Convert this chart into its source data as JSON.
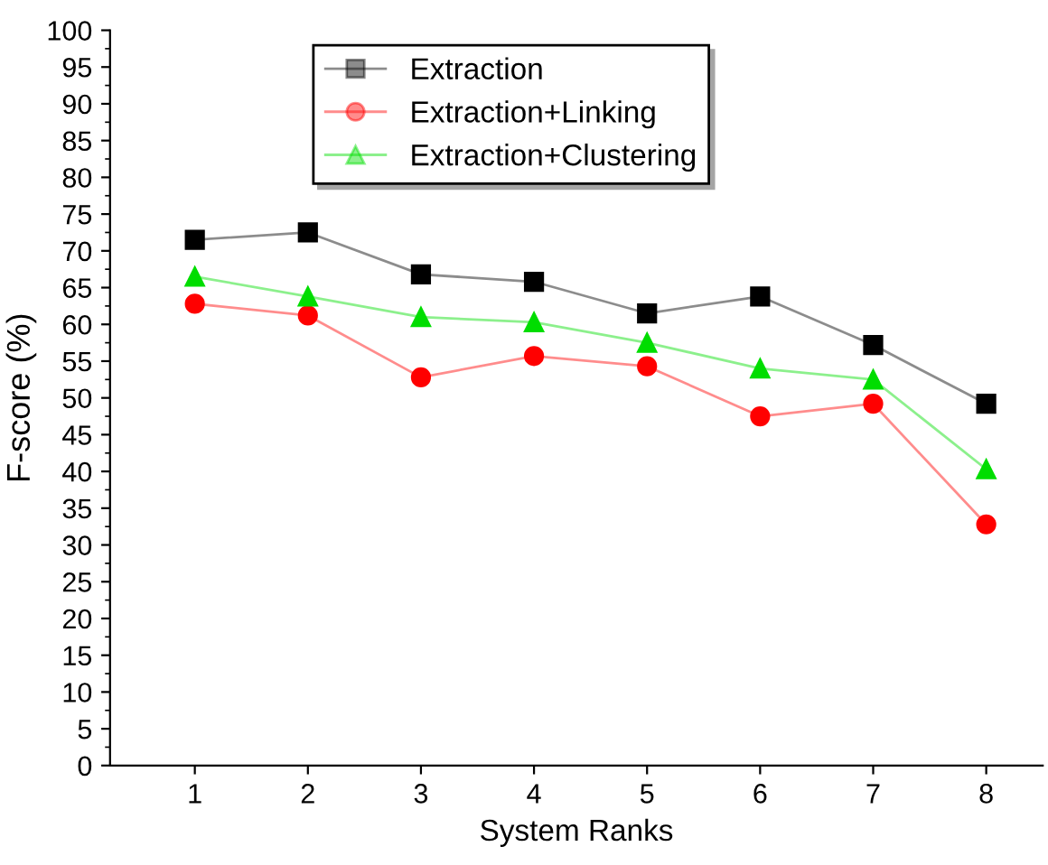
{
  "chart_data": {
    "type": "line",
    "xlabel": "System Ranks",
    "ylabel": "F-score (%)",
    "x": [
      1,
      2,
      3,
      4,
      5,
      6,
      7,
      8
    ],
    "xlim": [
      0.25,
      8.5
    ],
    "xticks": [
      1,
      2,
      3,
      4,
      5,
      6,
      7,
      8
    ],
    "ylim": [
      0,
      100
    ],
    "yticks": [
      0,
      5,
      10,
      15,
      20,
      25,
      30,
      35,
      40,
      45,
      50,
      55,
      60,
      65,
      70,
      75,
      80,
      85,
      90,
      95,
      100
    ],
    "grid": false,
    "legend": "top",
    "series": [
      {
        "name": "Extraction",
        "color": "#000000",
        "marker": "square",
        "values": [
          71.5,
          72.5,
          66.8,
          65.8,
          61.5,
          63.8,
          57.2,
          49.2
        ]
      },
      {
        "name": "Extraction+Linking",
        "color": "#ff0000",
        "marker": "circle",
        "values": [
          62.8,
          61.2,
          52.8,
          55.7,
          54.3,
          47.5,
          49.2,
          32.8
        ]
      },
      {
        "name": "Extraction+Clustering",
        "color": "#00dd00",
        "marker": "triangle",
        "values": [
          66.5,
          63.8,
          61.0,
          60.3,
          57.5,
          54.0,
          52.5,
          40.3
        ]
      }
    ]
  }
}
